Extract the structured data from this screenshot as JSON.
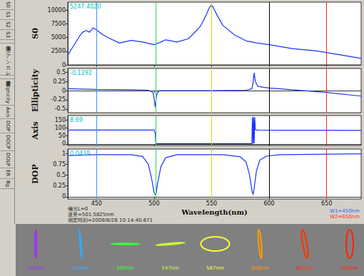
{
  "tabs": [
    "S0",
    "S1",
    "S2",
    "S3",
    "偏光",
    "ポアンカレ",
    "波長",
    "Ellipticity",
    "Axis",
    "DOP",
    "DOCP",
    "DOLP",
    "ER",
    "Bg"
  ],
  "chart_data": [
    {
      "type": "line",
      "ylabel": "S0",
      "readout": "5247.4020",
      "color": "#1a33ff",
      "grid": false,
      "tick_labels": "y",
      "x": [
        425,
        430,
        435,
        438,
        441,
        444,
        447,
        450,
        455,
        460,
        470,
        480,
        490,
        500,
        505,
        510,
        520,
        530,
        540,
        545,
        548,
        550,
        552,
        555,
        560,
        570,
        580,
        590,
        600,
        620,
        640,
        660,
        680
      ],
      "values": [
        1800,
        3500,
        5200,
        6000,
        6300,
        6000,
        6800,
        6400,
        5600,
        5000,
        4000,
        4500,
        4200,
        3700,
        4100,
        4600,
        4200,
        4800,
        7000,
        9000,
        10500,
        11000,
        10300,
        9000,
        7200,
        5500,
        4400,
        4000,
        3700,
        3000,
        2600,
        1900,
        1200
      ],
      "xlim": [
        425,
        680
      ],
      "xticks": [
        450,
        500,
        550,
        600,
        650
      ],
      "ylim": [
        0,
        11500
      ],
      "yticks": [
        0,
        2500,
        5000,
        7500,
        10000
      ]
    },
    {
      "type": "line",
      "ylabel": "Ellipticity",
      "readout": "-0.1292",
      "color": "#1a33ff",
      "grid": false,
      "tick_labels": "y",
      "x": [
        425,
        450,
        480,
        495,
        499,
        500,
        501,
        502,
        503,
        505,
        520,
        550,
        580,
        585,
        586,
        587,
        588,
        590,
        595,
        600,
        620,
        650,
        680
      ],
      "values": [
        0.05,
        0.03,
        0.02,
        0.01,
        -0.05,
        -0.2,
        -0.45,
        -0.15,
        -0.05,
        0.0,
        0.0,
        0.0,
        0.01,
        0.05,
        0.2,
        0.48,
        0.25,
        0.12,
        0.09,
        0.07,
        0.02,
        -0.05,
        -0.15
      ],
      "xlim": [
        425,
        680
      ],
      "xticks": [
        450,
        500,
        550,
        600,
        650
      ],
      "ylim": [
        -0.6,
        0.6
      ],
      "yticks": [
        -0.5,
        -0.25,
        0,
        0.25,
        0.5
      ]
    },
    {
      "type": "line",
      "ylabel": "Axis",
      "readout": "8.69",
      "color": "#1a33ff",
      "grid": false,
      "tick_labels": "y",
      "x": [
        425,
        450,
        500,
        501,
        501.5,
        502,
        550,
        585,
        585.5,
        586,
        586.5,
        587,
        587.5,
        588,
        590,
        620,
        650,
        680
      ],
      "values": [
        88,
        88,
        88,
        70,
        5,
        2,
        2,
        2,
        170,
        2,
        170,
        2,
        170,
        90,
        88,
        87,
        87,
        86
      ],
      "xlim": [
        425,
        680
      ],
      "xticks": [
        450,
        500,
        550,
        600,
        650
      ],
      "ylim": [
        -10,
        180
      ],
      "yticks": [
        0,
        50,
        100,
        150
      ]
    },
    {
      "type": "line",
      "ylabel": "DOP",
      "readout": "0.0439",
      "xlabel": "Wavelength(nm)",
      "color": "#1a33ff",
      "grid": false,
      "tick_labels": true,
      "x": [
        425,
        450,
        480,
        490,
        495,
        498,
        500,
        501.5,
        503,
        506,
        510,
        520,
        560,
        575,
        580,
        583,
        585,
        586,
        587,
        589,
        592,
        598,
        610,
        640,
        680
      ],
      "values": [
        0.95,
        0.97,
        0.97,
        0.93,
        0.75,
        0.4,
        0.1,
        0.04,
        0.3,
        0.7,
        0.9,
        0.97,
        0.97,
        0.92,
        0.8,
        0.5,
        0.15,
        0.05,
        0.2,
        0.6,
        0.85,
        0.94,
        0.97,
        0.98,
        0.99
      ],
      "xlim": [
        425,
        680
      ],
      "xticks": [
        450,
        500,
        550,
        600,
        650
      ],
      "ylim": [
        -0.05,
        1.1
      ],
      "yticks": [
        0,
        0.25,
        0.5,
        0.75,
        1
      ]
    }
  ],
  "markers": [
    {
      "x": 450,
      "color": "#3399ff"
    },
    {
      "x": 501.5825,
      "color": "#22dd55"
    },
    {
      "x": 550,
      "color": "#d8d800"
    },
    {
      "x": 600,
      "color": "#000000"
    },
    {
      "x": 650,
      "color": "#ff2020"
    }
  ],
  "status": [
    "偏光L=0",
    "波長=501.5825nm",
    "測定時刻=2009/8/28 10:14:40.671"
  ],
  "window_labels": [
    {
      "text": "W1=450nm",
      "color": "#3366ff"
    },
    {
      "text": "W2=650nm",
      "color": "#ff3333"
    }
  ],
  "ellipses": [
    {
      "label": "419nm",
      "color": "#9933ff",
      "axis": 90,
      "ellipticity": 0.05
    },
    {
      "label": "450nm",
      "color": "#33aaff",
      "axis": 95,
      "ellipticity": 0.03
    },
    {
      "label": "500nm",
      "color": "#33ff33",
      "axis": 0,
      "ellipticity": 0.0
    },
    {
      "label": "547nm",
      "color": "#ccff33",
      "axis": 5,
      "ellipticity": 0.02
    },
    {
      "label": "587nm",
      "color": "#ffff33",
      "axis": 0,
      "ellipticity": 0.5
    },
    {
      "label": "606nm",
      "color": "#ff9900",
      "axis": 95,
      "ellipticity": 0.1
    },
    {
      "label": "683nm",
      "color": "#ff3300",
      "axis": 100,
      "ellipticity": -0.15
    },
    {
      "label": "700nm",
      "color": "#ff2200",
      "axis": 90,
      "ellipticity": -0.25
    }
  ]
}
